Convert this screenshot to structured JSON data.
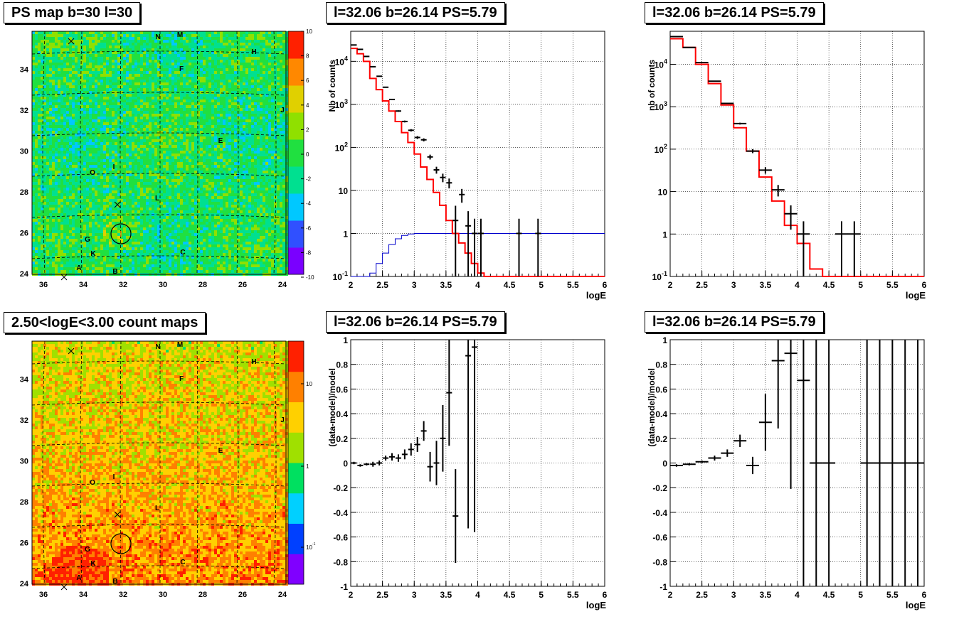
{
  "titles": {
    "map_top": "PS map b=30 l=30",
    "map_bottom": "2.50<logE<3.00 count maps",
    "spec_mid": "l=32.06 b=26.14 PS=5.79",
    "spec_right": "l=32.06 b=26.14 PS=5.79",
    "res_mid": "l=32.06 b=26.14 PS=5.79",
    "res_right": "l=32.06 b=26.14 PS=5.79"
  },
  "map": {
    "x_ticks": [
      "36",
      "34",
      "32",
      "30",
      "28",
      "26",
      "24"
    ],
    "y_ticks": [
      "24",
      "26",
      "28",
      "30",
      "32",
      "34"
    ],
    "source_labels": [
      "N",
      "M",
      "H",
      "F",
      "J",
      "E",
      "I",
      "O",
      "L",
      "G",
      "K",
      "C",
      "A",
      "B"
    ],
    "top_colorbar_ticks": [
      "10",
      "8",
      "6",
      "4",
      "2",
      "0",
      "-2",
      "-4",
      "-6",
      "-8",
      "-10"
    ],
    "bottom_colorbar_ticks": [
      "10",
      "1",
      "10-1"
    ],
    "top_colors": [
      "#7a00ff",
      "#3050ff",
      "#00c8ff",
      "#00e090",
      "#20e040",
      "#90e000",
      "#e0d000",
      "#ff8800",
      "#ff2000"
    ],
    "bottom_colors": [
      "#8000ff",
      "#0040ff",
      "#00d0ff",
      "#00e060",
      "#a0e000",
      "#ffd000",
      "#ff8000",
      "#ff2000"
    ]
  },
  "chart_data": [
    {
      "type": "line",
      "panel": "spectrum-middle",
      "xlabel": "logE",
      "ylabel": "Nb of counts",
      "xlim": [
        2,
        6
      ],
      "ylim": [
        0.1,
        50000
      ],
      "yscale": "log",
      "x_ticks": [
        "2",
        "2.5",
        "3",
        "3.5",
        "4",
        "4.5",
        "5",
        "5.5",
        "6"
      ],
      "y_ticks": [
        "10-1",
        "1",
        "10",
        "102",
        "103",
        "104"
      ],
      "series": [
        {
          "color": "#ff0000",
          "step_x": [
            2,
            2.1,
            2.2,
            2.3,
            2.4,
            2.5,
            2.6,
            2.7,
            2.8,
            2.9,
            3.0,
            3.1,
            3.2,
            3.3,
            3.4,
            3.5,
            3.6,
            3.7,
            3.8,
            3.9,
            4.0,
            4.1,
            4.2,
            6.0
          ],
          "values": [
            20000,
            15000,
            10000,
            4000,
            2200,
            1200,
            700,
            400,
            220,
            130,
            70,
            35,
            18,
            9,
            4.5,
            2,
            1,
            0.6,
            0.35,
            0.2,
            0.12,
            0.1,
            0.1
          ]
        },
        {
          "color": "#0000cc",
          "step_x": [
            2,
            2.1,
            2.2,
            2.3,
            2.4,
            2.5,
            2.6,
            2.7,
            2.8,
            2.9,
            3.0,
            3.2,
            6.0
          ],
          "values": [
            0.1,
            0.1,
            0.1,
            0.12,
            0.2,
            0.35,
            0.55,
            0.75,
            0.9,
            0.97,
            1.0,
            1.0
          ]
        },
        {
          "color": "#000000",
          "points_x": [
            2.05,
            2.15,
            2.25,
            2.35,
            2.45,
            2.55,
            2.65,
            2.75,
            2.85,
            2.95,
            3.05,
            3.15,
            3.25,
            3.35,
            3.45,
            3.55,
            3.65,
            3.75,
            3.85,
            3.95,
            4.05,
            4.65,
            4.95
          ],
          "values": [
            24000,
            19000,
            13000,
            7500,
            4500,
            2500,
            1300,
            700,
            400,
            250,
            170,
            150,
            60,
            30,
            20,
            15,
            2,
            8,
            1.5,
            1,
            1,
            1,
            1
          ]
        }
      ]
    },
    {
      "type": "line",
      "panel": "spectrum-right",
      "xlabel": "logE",
      "ylabel": "nb of counts",
      "xlim": [
        2,
        6
      ],
      "ylim": [
        0.1,
        60000
      ],
      "yscale": "log",
      "x_ticks": [
        "2",
        "2.5",
        "3",
        "3.5",
        "4",
        "4.5",
        "5",
        "5.5",
        "6"
      ],
      "y_ticks": [
        "10-1",
        "1",
        "10",
        "102",
        "103",
        "104"
      ],
      "series": [
        {
          "color": "#ff0000",
          "step_x": [
            2,
            2.2,
            2.4,
            2.6,
            2.8,
            3.0,
            3.2,
            3.4,
            3.6,
            3.8,
            4.0,
            4.2,
            4.4,
            6.0
          ],
          "values": [
            40000,
            25000,
            10000,
            3500,
            1100,
            320,
            90,
            22,
            6,
            1.6,
            0.6,
            0.15,
            0.1
          ]
        },
        {
          "color": "#000000",
          "points_x": [
            2.1,
            2.3,
            2.5,
            2.7,
            2.9,
            3.1,
            3.3,
            3.5,
            3.7,
            3.9,
            4.1,
            4.7,
            4.9
          ],
          "values": [
            45000,
            25000,
            11000,
            4000,
            1200,
            400,
            90,
            32,
            11,
            3,
            1,
            1,
            1
          ]
        }
      ]
    },
    {
      "type": "scatter",
      "panel": "residual-middle",
      "xlabel": "logE",
      "ylabel": "(data-model)/model",
      "xlim": [
        2,
        6
      ],
      "ylim": [
        -1,
        1
      ],
      "x_ticks": [
        "2",
        "2.5",
        "3",
        "3.5",
        "4",
        "4.5",
        "5",
        "5.5",
        "6"
      ],
      "y_ticks": [
        "-1",
        "-0.8",
        "-0.6",
        "-0.4",
        "-0.2",
        "0",
        "0.2",
        "0.4",
        "0.6",
        "0.8",
        "1"
      ],
      "points_x": [
        2.05,
        2.15,
        2.25,
        2.35,
        2.45,
        2.55,
        2.65,
        2.75,
        2.85,
        2.95,
        3.05,
        3.15,
        3.25,
        3.35,
        3.45,
        3.55,
        3.65,
        3.85,
        3.95
      ],
      "values": [
        0.0,
        -0.02,
        -0.01,
        -0.01,
        0.0,
        0.04,
        0.05,
        0.04,
        0.07,
        0.11,
        0.15,
        0.26,
        -0.03,
        0.0,
        0.2,
        0.57,
        -0.43,
        0.87,
        0.94
      ],
      "errors": [
        0.01,
        0.01,
        0.01,
        0.02,
        0.02,
        0.02,
        0.03,
        0.03,
        0.04,
        0.05,
        0.06,
        0.08,
        0.12,
        0.18,
        0.27,
        0.43,
        0.38,
        1.4,
        1.5
      ]
    },
    {
      "type": "scatter",
      "panel": "residual-right",
      "xlabel": "logE",
      "ylabel": "(data-model)/model",
      "xlim": [
        2,
        6
      ],
      "ylim": [
        -1,
        1
      ],
      "x_ticks": [
        "2",
        "2.5",
        "3",
        "3.5",
        "4",
        "4.5",
        "5",
        "5.5",
        "6"
      ],
      "y_ticks": [
        "-1",
        "-0.8",
        "-0.6",
        "-0.4",
        "-0.2",
        "0",
        "0.2",
        "0.4",
        "0.6",
        "0.8",
        "1"
      ],
      "points_x": [
        2.1,
        2.3,
        2.5,
        2.7,
        2.9,
        3.1,
        3.3,
        3.5,
        3.7,
        3.9,
        4.1,
        4.3,
        4.5,
        5.1,
        5.3,
        5.5,
        5.7,
        5.9
      ],
      "values": [
        -0.02,
        -0.01,
        0.01,
        0.04,
        0.08,
        0.18,
        -0.02,
        0.33,
        0.83,
        0.89,
        0.67,
        0,
        0,
        0,
        0,
        0,
        0,
        0
      ],
      "errors": [
        0.01,
        0.01,
        0.01,
        0.02,
        0.03,
        0.05,
        0.07,
        0.23,
        0.55,
        1.1,
        1.7,
        1.5,
        1.5,
        1.5,
        1.5,
        1.5,
        1.5,
        1.5
      ]
    }
  ]
}
